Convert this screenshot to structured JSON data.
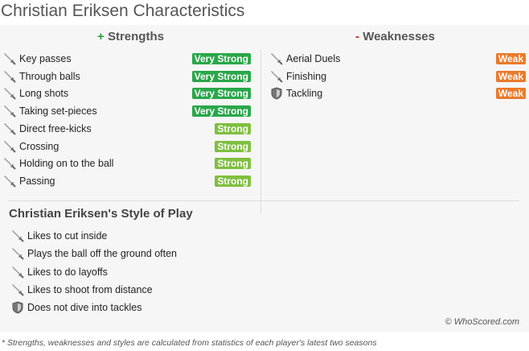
{
  "title": "Christian Eriksen Characteristics",
  "strengths": {
    "sign": "+",
    "heading": "Strengths",
    "items": [
      {
        "label": "Key passes",
        "level": "Very Strong",
        "icon": "sword-icon"
      },
      {
        "label": "Through balls",
        "level": "Very Strong",
        "icon": "sword-icon"
      },
      {
        "label": "Long shots",
        "level": "Very Strong",
        "icon": "sword-icon"
      },
      {
        "label": "Taking set-pieces",
        "level": "Very Strong",
        "icon": "sword-icon"
      },
      {
        "label": "Direct free-kicks",
        "level": "Strong",
        "icon": "sword-icon"
      },
      {
        "label": "Crossing",
        "level": "Strong",
        "icon": "sword-icon"
      },
      {
        "label": "Holding on to the ball",
        "level": "Strong",
        "icon": "sword-icon"
      },
      {
        "label": "Passing",
        "level": "Strong",
        "icon": "sword-icon"
      }
    ]
  },
  "weaknesses": {
    "sign": "-",
    "heading": "Weaknesses",
    "items": [
      {
        "label": "Aerial Duels",
        "level": "Weak",
        "icon": "sword-icon"
      },
      {
        "label": "Finishing",
        "level": "Weak",
        "icon": "sword-icon"
      },
      {
        "label": "Tackling",
        "level": "Weak",
        "icon": "shield-icon"
      }
    ]
  },
  "style": {
    "heading": "Christian Eriksen's Style of Play",
    "items": [
      {
        "label": "Likes to cut inside",
        "icon": "sword-icon"
      },
      {
        "label": "Plays the ball off the ground often",
        "icon": "sword-icon"
      },
      {
        "label": "Likes to do layoffs",
        "icon": "sword-icon"
      },
      {
        "label": "Likes to shoot from distance",
        "icon": "sword-icon"
      },
      {
        "label": "Does not dive into tackles",
        "icon": "shield-icon"
      }
    ]
  },
  "credit": "© WhoScored.com",
  "footnote": "* Strengths, weaknesses and styles are calculated from statistics of each player's latest two seasons",
  "colors": {
    "very_strong": "#2aa74a",
    "strong": "#7fbf3f",
    "weak": "#ea7a2b"
  }
}
